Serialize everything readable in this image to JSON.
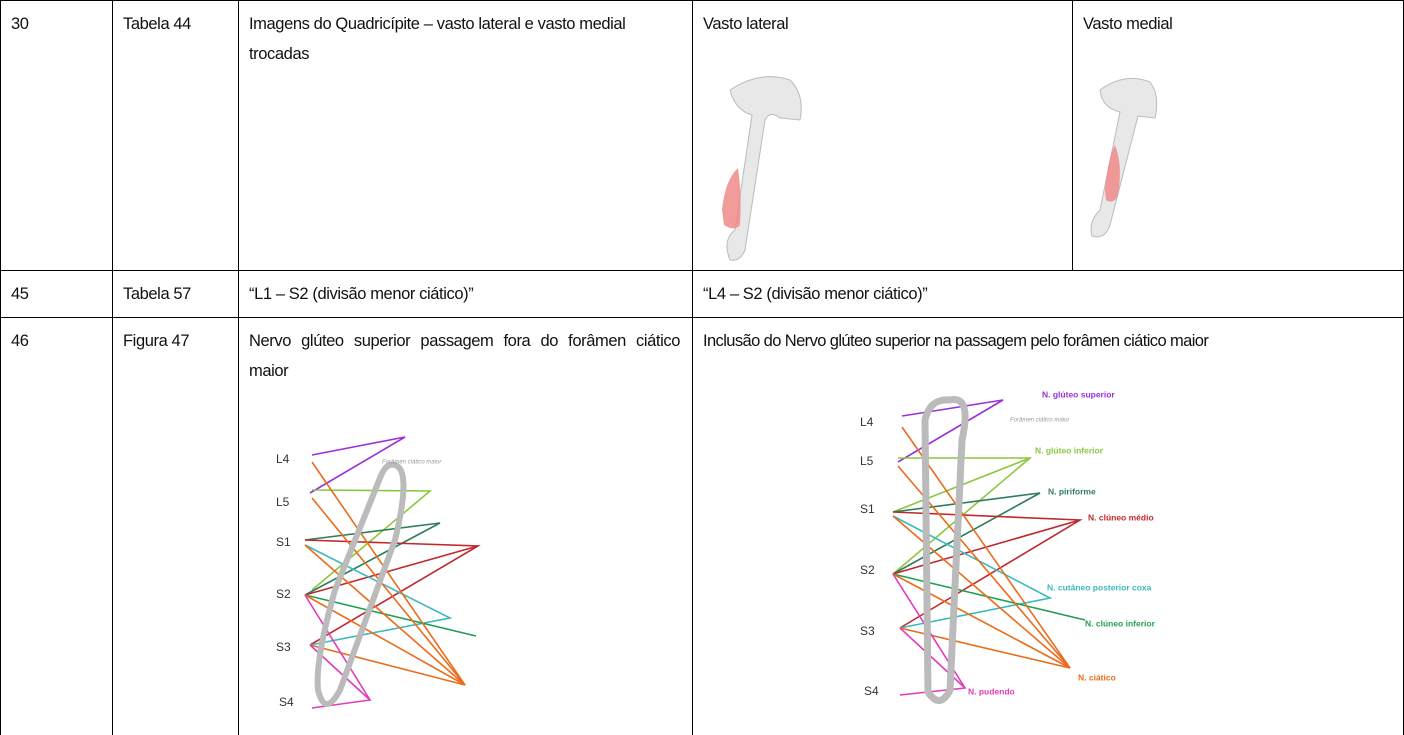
{
  "table": {
    "rows": [
      [
        "30",
        "Tabela 44",
        "Imagens do Quadricípite – vasto lateral e vasto medial trocadas",
        "Vasto lateral",
        "Vasto medial"
      ],
      [
        "45",
        "Tabela 57",
        "“L1 – S2 (divisão menor ciático)”",
        "“L4 – S2 (divisão menor ciático)”"
      ],
      [
        "46",
        "Figura 47",
        "Nervo glúteo superior passagem fora do forâmen ciático maior",
        "Inclusão do Nervo glúteo superior na passagem pelo forâmen ciático maior"
      ]
    ]
  },
  "figures": {
    "left": {
      "roots": [
        "L4",
        "L5",
        "S1",
        "S2",
        "S3",
        "S4"
      ],
      "foramen": "Forâmen ciático maior"
    },
    "right": {
      "roots": [
        "L4",
        "L5",
        "S1",
        "S2",
        "S3",
        "S4"
      ],
      "foramen": "Forâmen ciático maior",
      "nerves": [
        "N. glúteo superior",
        "N. glúteo inferior",
        "N. piriforme",
        "N. clúneo médio",
        "N. cutâneo posterior coxa",
        "N. clúneo inferior",
        "N. ciático",
        "N. pudendo"
      ]
    }
  }
}
